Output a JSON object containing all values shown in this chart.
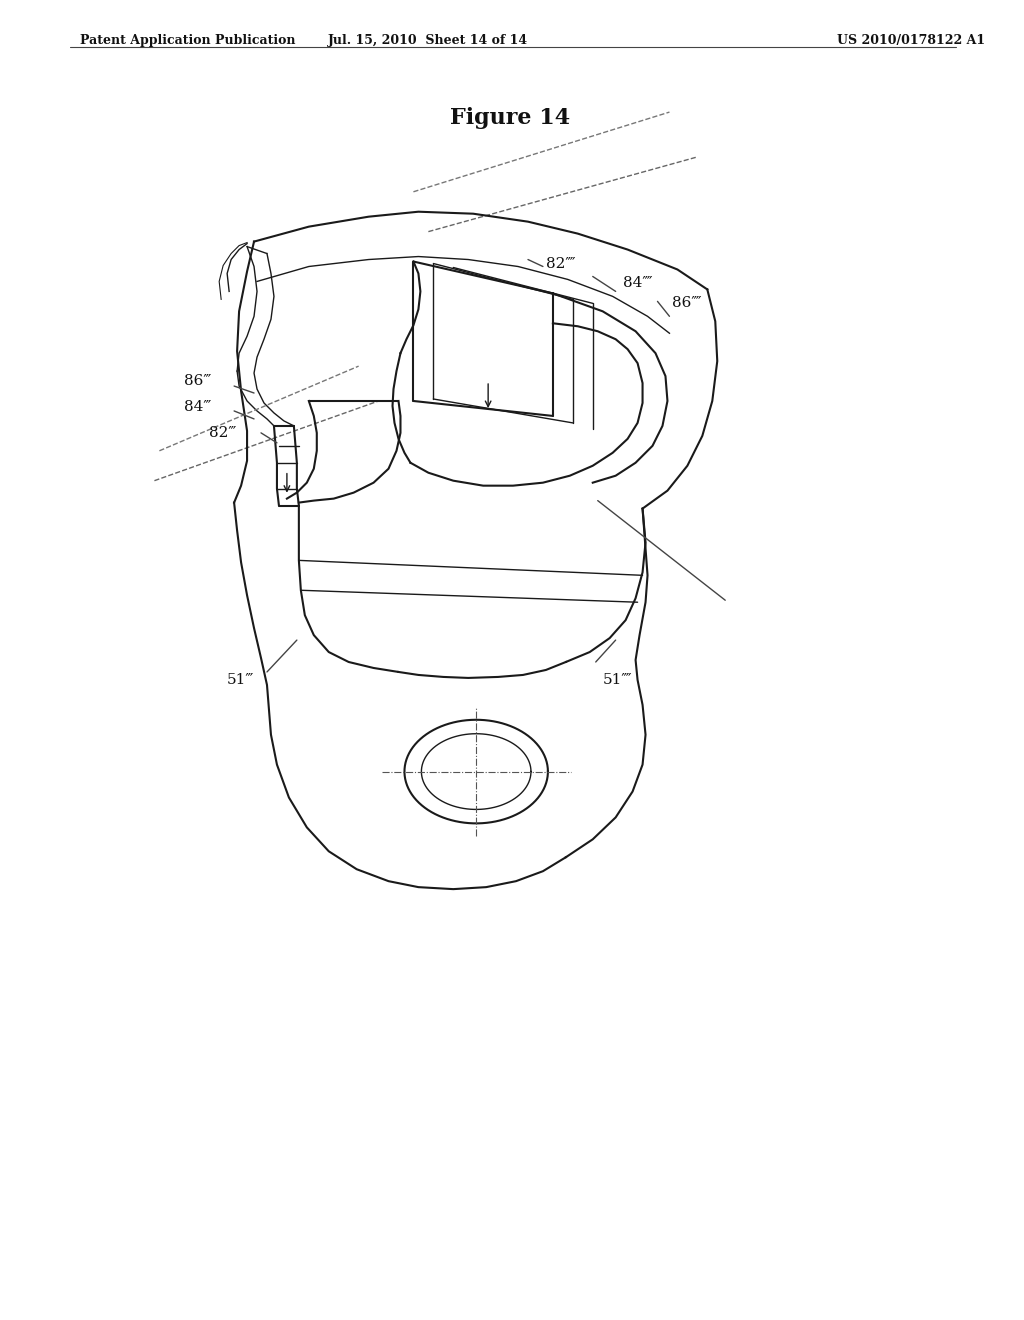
{
  "background_color": "#ffffff",
  "header_left": "Patent Application Publication",
  "header_center": "Jul. 15, 2010  Sheet 14 of 14",
  "header_right": "US 2010/0178122 A1",
  "figure_title": "Figure 14",
  "line_color": "#1a1a1a",
  "label_color": "#111111",
  "header_fontsize": 9,
  "title_fontsize": 16,
  "label_fontsize": 11
}
